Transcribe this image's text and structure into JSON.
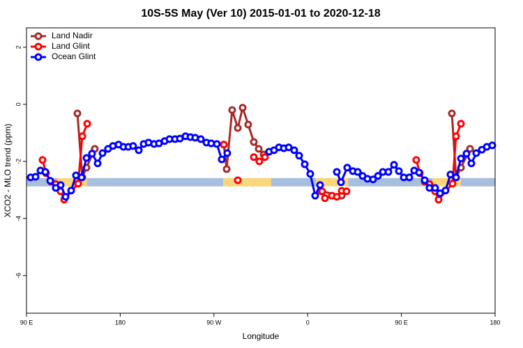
{
  "chart_data": {
    "type": "line",
    "title": "10S-5S May (Ver 10)   2015-01-01 to 2020-12-18",
    "xlabel": "Longitude",
    "ylabel": "XCO2 - MLO trend (ppm)",
    "xlim": [
      90,
      540
    ],
    "ylim": [
      -7.32,
      2.68
    ],
    "xticks": [
      {
        "value": 90,
        "label": "90 E"
      },
      180,
      {
        "value": 270,
        "label": "90 W"
      },
      {
        "value": 360,
        "label": "0"
      },
      {
        "value": 450,
        "label": "90 E"
      },
      {
        "value": 540,
        "label": "180"
      }
    ],
    "yticks": [
      2,
      0,
      -2,
      -4,
      -6
    ],
    "legend": "topleft",
    "surface_strip": {
      "y": -2.73,
      "segments": [
        {
          "x": [
            90,
            120
          ],
          "color": "#a7bfdc"
        },
        {
          "x": [
            120,
            148
          ],
          "color": "#fbd67a"
        },
        {
          "x": [
            148,
            279
          ],
          "color": "#a7bfdc"
        },
        {
          "x": [
            279,
            325
          ],
          "color": "#fbd67a"
        },
        {
          "x": [
            325,
            368
          ],
          "color": "#a7bfdc"
        },
        {
          "x": [
            368,
            399
          ],
          "color": "#fbd67a"
        },
        {
          "x": [
            399,
            480
          ],
          "color": "#a7bfdc"
        },
        {
          "x": [
            480,
            507
          ],
          "color": "#fbd67a"
        },
        {
          "x": [
            507,
            540
          ],
          "color": "#a7bfdc"
        }
      ]
    },
    "series": [
      {
        "name": "Land Nadir",
        "color": "#a52a2a",
        "x": [
          138.9,
          143.6,
          147.6,
          155.6,
          null,
          279.5,
          282.2,
          287.5,
          292.9,
          297.6,
          302.9,
          308.3,
          313.0,
          317.7,
          null,
          373.2,
          392.7,
          null,
          498.5,
          502.5,
          507.2,
          515.9
        ],
        "values": [
          -0.32,
          -2.56,
          -2.22,
          -1.56,
          null,
          -1.41,
          -2.27,
          -0.2,
          -0.83,
          -0.12,
          -0.71,
          -1.32,
          -1.56,
          -1.76,
          null,
          -3.05,
          -3.2,
          null,
          -0.32,
          -2.56,
          -2.22,
          -1.56
        ]
      },
      {
        "name": "Land Glint",
        "color": "#ff0000",
        "x": [
          105.4,
          108.7,
          113.4,
          118.1,
          122.8,
          126.2,
          139.6,
          143.6,
          148.3,
          null,
          279.5,
          null,
          292.9,
          null,
          308.3,
          313.6,
          319.0,
          null,
          373.9,
          376.6,
          383.3,
          388.0,
          392.7,
          397.3,
          null,
          464.3,
          467.7,
          472.4,
          477.0,
          482.4,
          485.7,
          499.1,
          502.5,
          507.2
        ],
        "values": [
          -1.95,
          -2.41,
          -2.71,
          -2.8,
          -3.05,
          -3.34,
          -2.78,
          -1.12,
          -0.68,
          null,
          -1.41,
          null,
          -2.66,
          null,
          -1.85,
          -2.0,
          -1.85,
          null,
          -3.05,
          -3.29,
          -3.2,
          -3.24,
          -3.03,
          -3.05,
          null,
          -1.95,
          -2.41,
          -2.71,
          -2.8,
          -3.05,
          -3.34,
          -2.78,
          -1.12,
          -0.68
        ]
      },
      {
        "name": "Ocean Glint",
        "color": "#0000ff",
        "x": [
          94.0,
          98.7,
          103.4,
          108.1,
          112.8,
          118.1,
          122.8,
          127.5,
          132.9,
          137.5,
          142.9,
          147.6,
          152.9,
          158.3,
          163.0,
          168.3,
          173.0,
          178.4,
          183.1,
          187.8,
          192.4,
          197.8,
          202.5,
          207.2,
          212.5,
          217.2,
          222.6,
          227.3,
          232.6,
          237.3,
          242.7,
          247.4,
          252.0,
          257.4,
          262.8,
          267.4,
          272.8,
          277.5,
          282.8,
          null,
          323.0,
          327.7,
          332.4,
          337.1,
          341.8,
          347.1,
          351.8,
          357.2,
          362.5,
          367.2,
          371.9,
          null,
          388.0,
          392.0,
          398.0,
          403.4,
          408.1,
          412.7,
          417.4,
          422.8,
          427.5,
          432.2,
          437.5,
          442.9,
          447.6,
          452.3,
          457.6,
          462.3,
          467.0,
          472.4,
          477.0,
          482.4,
          487.1,
          492.4,
          497.1,
          502.5,
          507.2,
          512.5,
          517.2,
          521.9,
          527.3,
          532.0,
          537.3
        ],
        "values": [
          -2.56,
          -2.54,
          -2.32,
          -2.37,
          -2.68,
          -2.93,
          -2.83,
          -3.24,
          -3.02,
          -2.49,
          -2.56,
          -1.88,
          -1.73,
          -2.07,
          -1.71,
          -1.56,
          -1.46,
          -1.41,
          -1.49,
          -1.49,
          -1.46,
          -1.61,
          -1.39,
          -1.34,
          -1.39,
          -1.37,
          -1.29,
          -1.22,
          -1.22,
          -1.2,
          -1.12,
          -1.15,
          -1.17,
          -1.22,
          -1.34,
          -1.37,
          -1.39,
          -1.93,
          -1.71,
          null,
          -1.66,
          -1.61,
          -1.51,
          -1.54,
          -1.51,
          -1.61,
          -1.8,
          -2.1,
          -2.44,
          -3.2,
          -2.83,
          null,
          -2.37,
          -2.73,
          -2.22,
          -2.34,
          -2.37,
          -2.51,
          -2.61,
          -2.63,
          -2.51,
          -2.37,
          -2.37,
          -2.12,
          -2.34,
          -2.56,
          -2.56,
          -2.32,
          -2.39,
          -2.66,
          -2.93,
          -2.93,
          -3.12,
          -3.02,
          -2.46,
          -2.56,
          -1.9,
          -1.73,
          -2.07,
          -1.71,
          -1.59,
          -1.49,
          -1.44
        ]
      }
    ]
  }
}
